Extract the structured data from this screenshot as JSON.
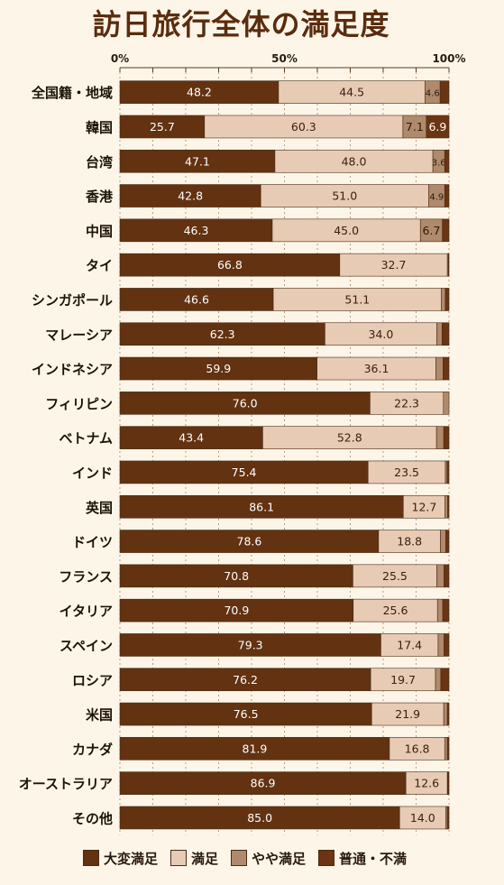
{
  "title": "訪日旅行全体の満足度",
  "chart_data": {
    "type": "bar",
    "orientation": "horizontal",
    "stacked": true,
    "title": "訪日旅行全体の満足度",
    "x_tick_labels": [
      "0%",
      "50%",
      "100%"
    ],
    "xlim": [
      0,
      100
    ],
    "categories": [
      "全国籍・地域",
      "韓国",
      "台湾",
      "香港",
      "中国",
      "タイ",
      "シンガポール",
      "マレーシア",
      "インドネシア",
      "フィリピン",
      "ベトナム",
      "インド",
      "英国",
      "ドイツ",
      "フランス",
      "イタリア",
      "スペイン",
      "ロシア",
      "米国",
      "カナダ",
      "オーストラリア",
      "その他"
    ],
    "series": [
      {
        "name": "大変満足",
        "color": "#623211",
        "labels_shown": true,
        "values": [
          48.2,
          25.7,
          47.1,
          42.8,
          46.3,
          66.8,
          46.6,
          62.3,
          59.9,
          76.0,
          43.4,
          75.4,
          86.1,
          78.6,
          70.8,
          70.9,
          79.3,
          76.2,
          76.5,
          81.9,
          86.9,
          85.0
        ]
      },
      {
        "name": "満足",
        "color": "#e8cbb4",
        "labels_shown": true,
        "values": [
          44.5,
          60.3,
          48.0,
          51.0,
          45.0,
          32.7,
          51.1,
          34.0,
          36.1,
          22.3,
          52.8,
          23.5,
          12.7,
          18.8,
          25.5,
          25.6,
          17.4,
          19.7,
          21.9,
          16.8,
          12.6,
          14.0
        ]
      },
      {
        "name": "やや満足",
        "color": "#b08a6c",
        "values": [
          4.6,
          7.1,
          3.6,
          4.9,
          6.7,
          0.3,
          1.2,
          1.6,
          2.2,
          1.7,
          2.2,
          0.5,
          0.8,
          1.6,
          2.2,
          1.6,
          1.8,
          1.6,
          1.1,
          0.8,
          0.2,
          0.5
        ],
        "printed_labels": [
          "4.6",
          "7.1",
          "3.6",
          "4.9",
          "6.7",
          "",
          "",
          "",
          "",
          "",
          "",
          "",
          "",
          "",
          "",
          "",
          "",
          "",
          "",
          "",
          "",
          ""
        ]
      },
      {
        "name": "普通・不満",
        "color": "#6b3413",
        "values": [
          2.7,
          6.9,
          1.3,
          1.3,
          2.0,
          0.2,
          1.1,
          2.1,
          1.8,
          0.0,
          1.6,
          0.6,
          0.4,
          1.0,
          1.5,
          1.9,
          1.5,
          2.5,
          0.5,
          0.5,
          0.3,
          0.5
        ],
        "printed_labels": [
          "",
          "6.9",
          "",
          "",
          "",
          "",
          "",
          "",
          "",
          "",
          "",
          "",
          "",
          "",
          "",
          "",
          "",
          "",
          "",
          "",
          "",
          ""
        ]
      }
    ],
    "grid": true,
    "legend_position": "bottom"
  }
}
